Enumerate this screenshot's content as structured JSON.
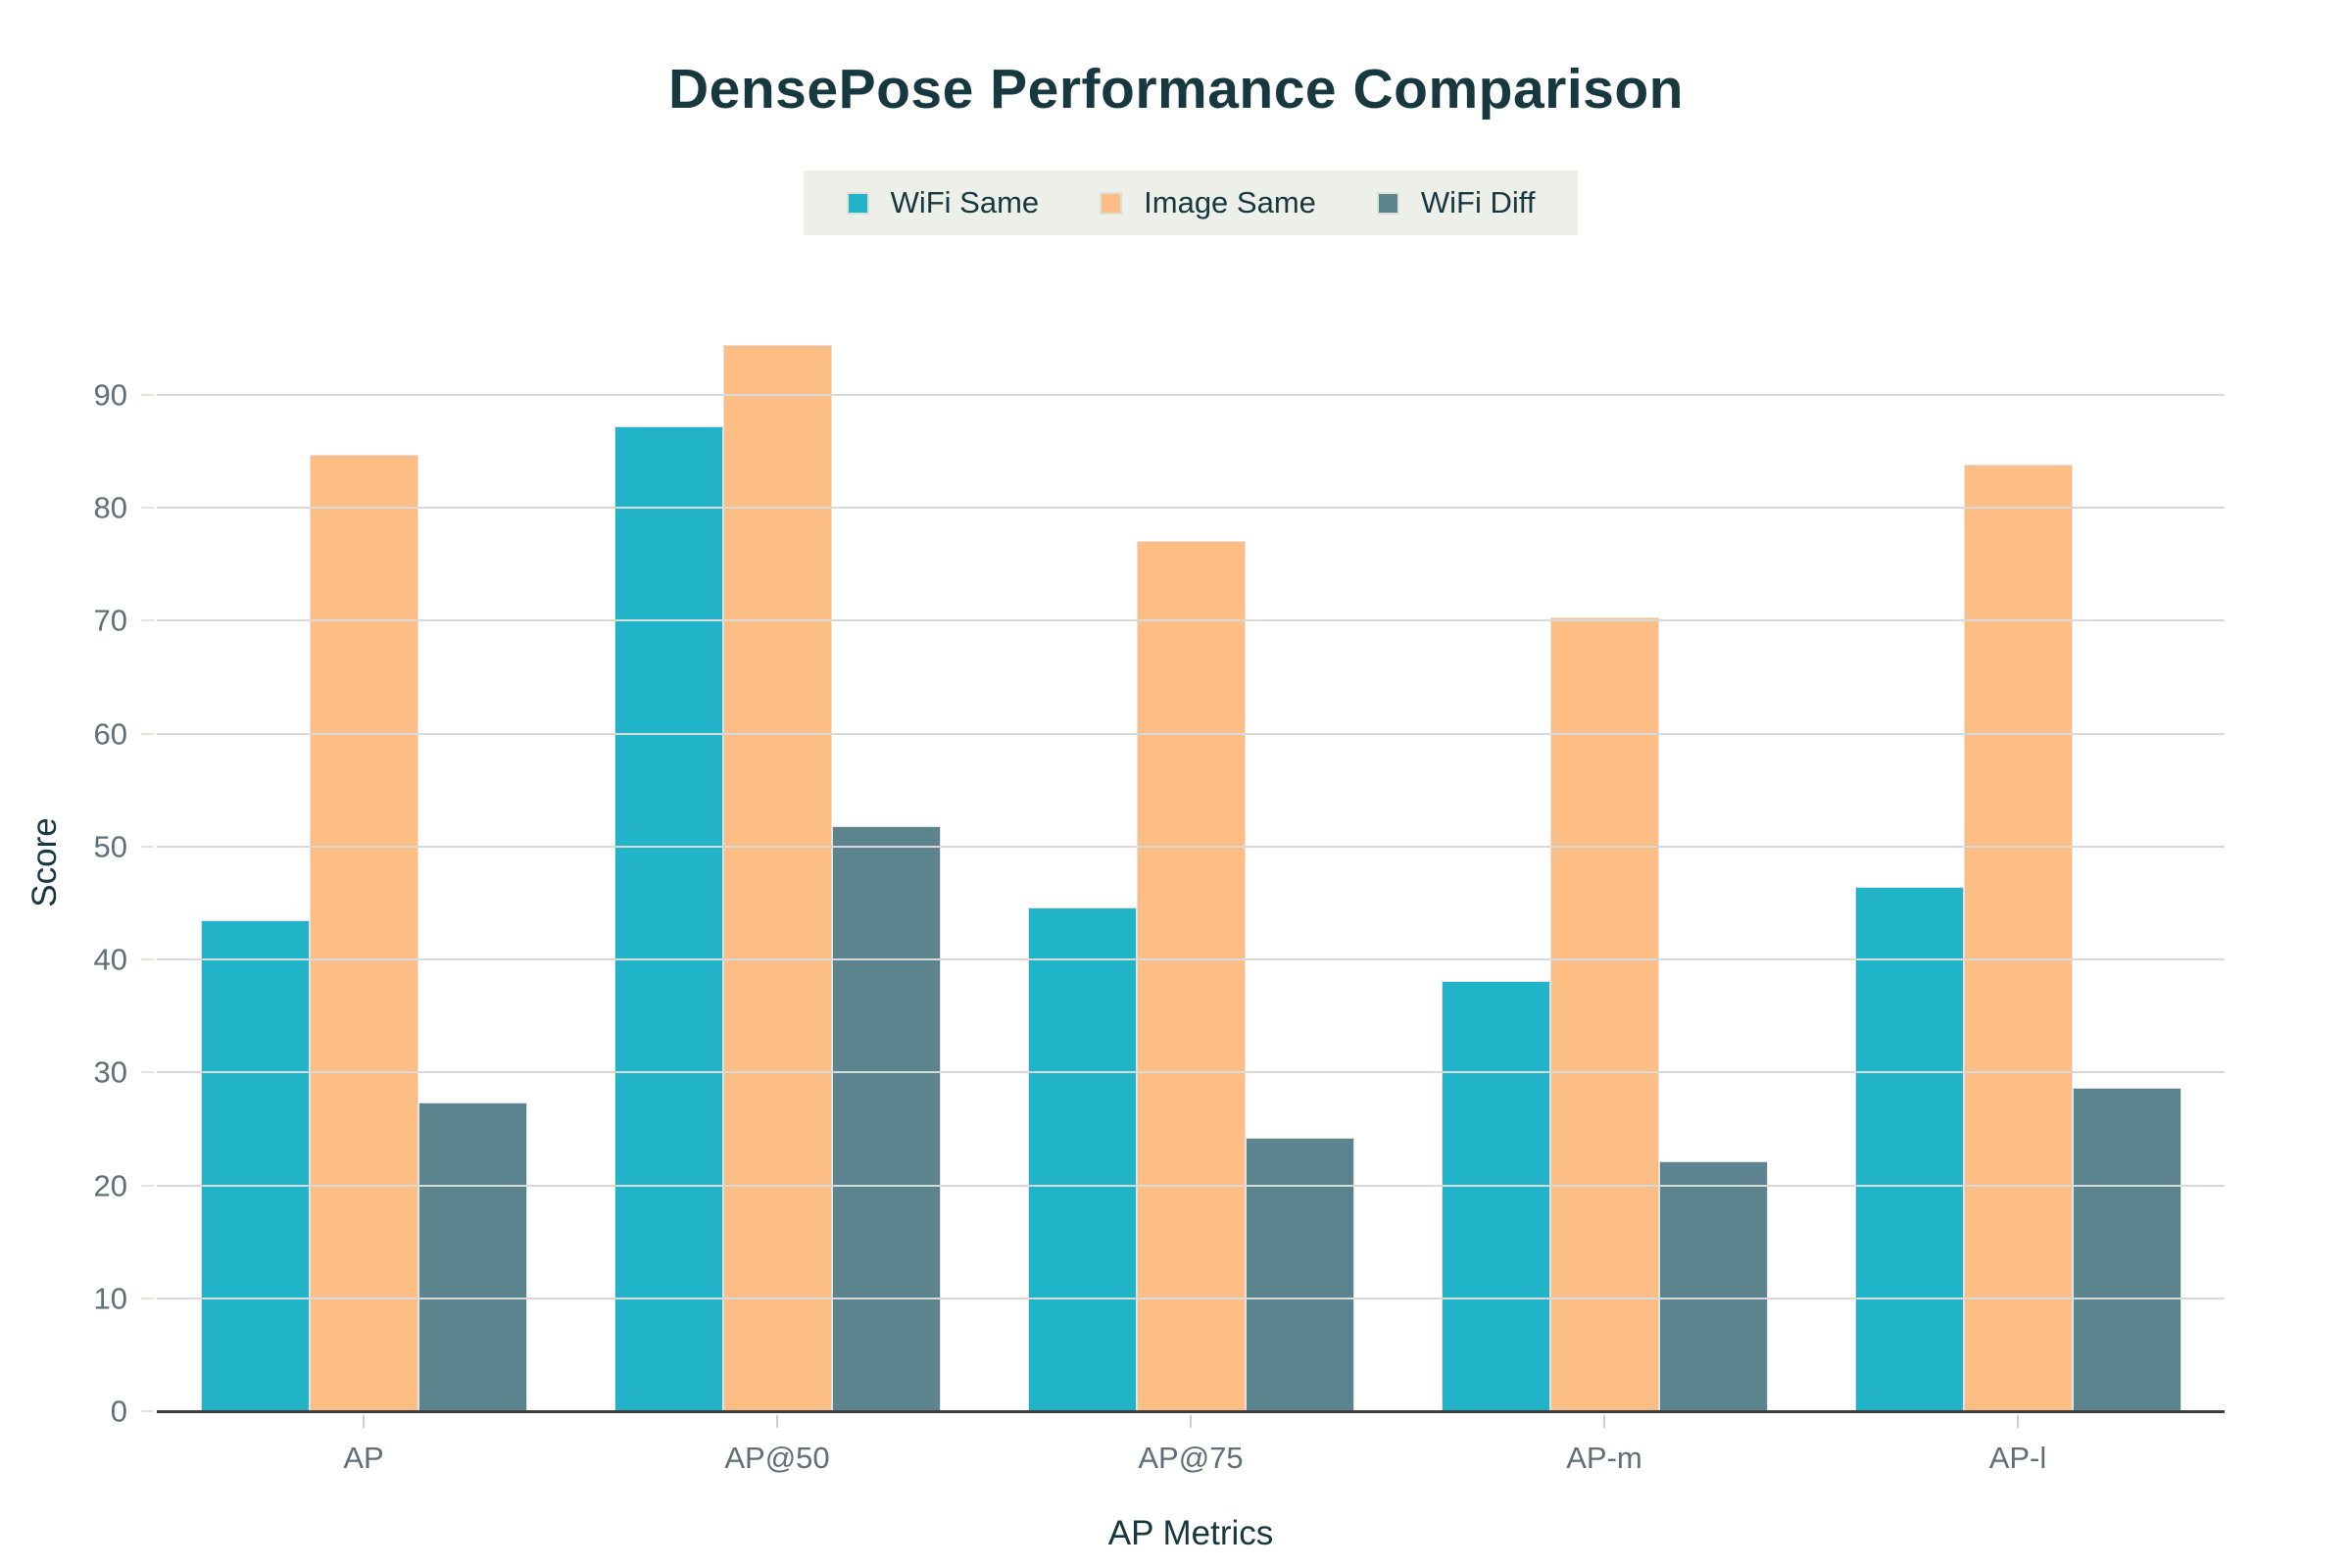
{
  "chart_data": {
    "type": "bar",
    "title": "DensePose Performance Comparison",
    "xlabel": "AP Metrics",
    "ylabel": "Score",
    "categories": [
      "AP",
      "AP@50",
      "AP@75",
      "AP-m",
      "AP-l"
    ],
    "series": [
      {
        "name": "WiFi Same",
        "color": "#21b4c9",
        "values": [
          43.5,
          87.2,
          44.6,
          38.1,
          46.4
        ]
      },
      {
        "name": "Image Same",
        "color": "#fcbe85",
        "values": [
          84.7,
          94.4,
          77.1,
          70.3,
          83.8
        ]
      },
      {
        "name": "WiFi Diff",
        "color": "#5b848e",
        "values": [
          27.3,
          51.8,
          24.2,
          22.1,
          28.6
        ]
      }
    ],
    "yticks": [
      0,
      10,
      20,
      30,
      40,
      50,
      60,
      70,
      80,
      90
    ],
    "ylim": [
      0,
      97.2
    ],
    "grid": true,
    "legend_position": "top-center",
    "colors": {
      "title": "#17383f",
      "axis_title": "#17383f",
      "tick_label": "#5f6e79",
      "gridline": "#d9d9d9",
      "axis_line": "#3e3e3e",
      "legend_background": "#edefe9",
      "background": "#ffffff"
    }
  }
}
